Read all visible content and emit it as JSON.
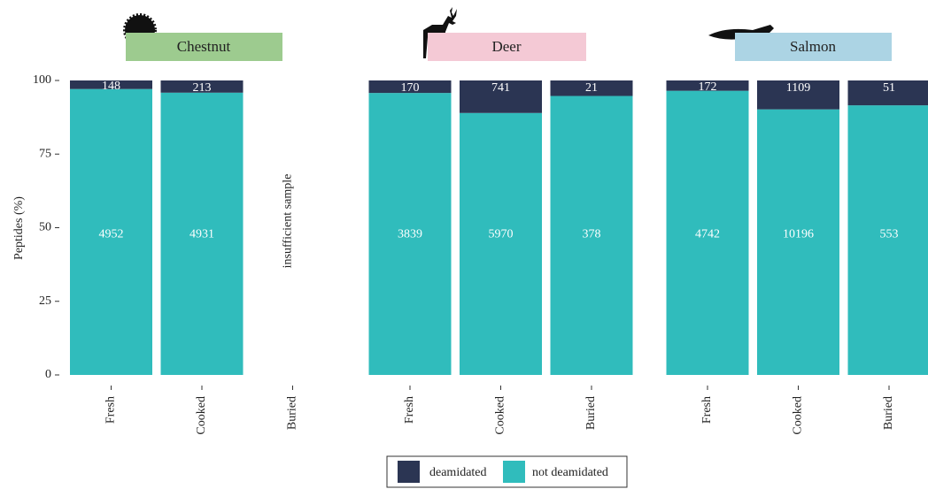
{
  "chart_data": [
    {
      "type": "bar",
      "stack": "percent",
      "title": "Chestnut",
      "ylabel": "Peptides (%)",
      "ylim": [
        0,
        100
      ],
      "yticks": [
        0,
        25,
        50,
        75,
        100
      ],
      "categories": [
        "Fresh",
        "Cooked",
        "Buried"
      ],
      "annotation": "insufficient sample",
      "series": [
        {
          "name": "deamidated",
          "color": "#2b3553",
          "values": [
            148,
            213,
            null
          ]
        },
        {
          "name": "not deamidated",
          "color": "#30bcbc",
          "values": [
            4952,
            4931,
            null
          ]
        }
      ]
    },
    {
      "type": "bar",
      "stack": "percent",
      "title": "Deer",
      "categories": [
        "Fresh",
        "Cooked",
        "Buried"
      ],
      "series": [
        {
          "name": "deamidated",
          "color": "#2b3553",
          "values": [
            170,
            741,
            21
          ]
        },
        {
          "name": "not deamidated",
          "color": "#30bcbc",
          "values": [
            3839,
            5970,
            378
          ]
        }
      ]
    },
    {
      "type": "bar",
      "stack": "percent",
      "title": "Salmon",
      "categories": [
        "Fresh",
        "Cooked",
        "Buried"
      ],
      "series": [
        {
          "name": "deamidated",
          "color": "#2b3553",
          "values": [
            172,
            1109,
            51
          ]
        },
        {
          "name": "not deamidated",
          "color": "#30bcbc",
          "values": [
            4742,
            10196,
            553
          ]
        }
      ]
    }
  ]
}
